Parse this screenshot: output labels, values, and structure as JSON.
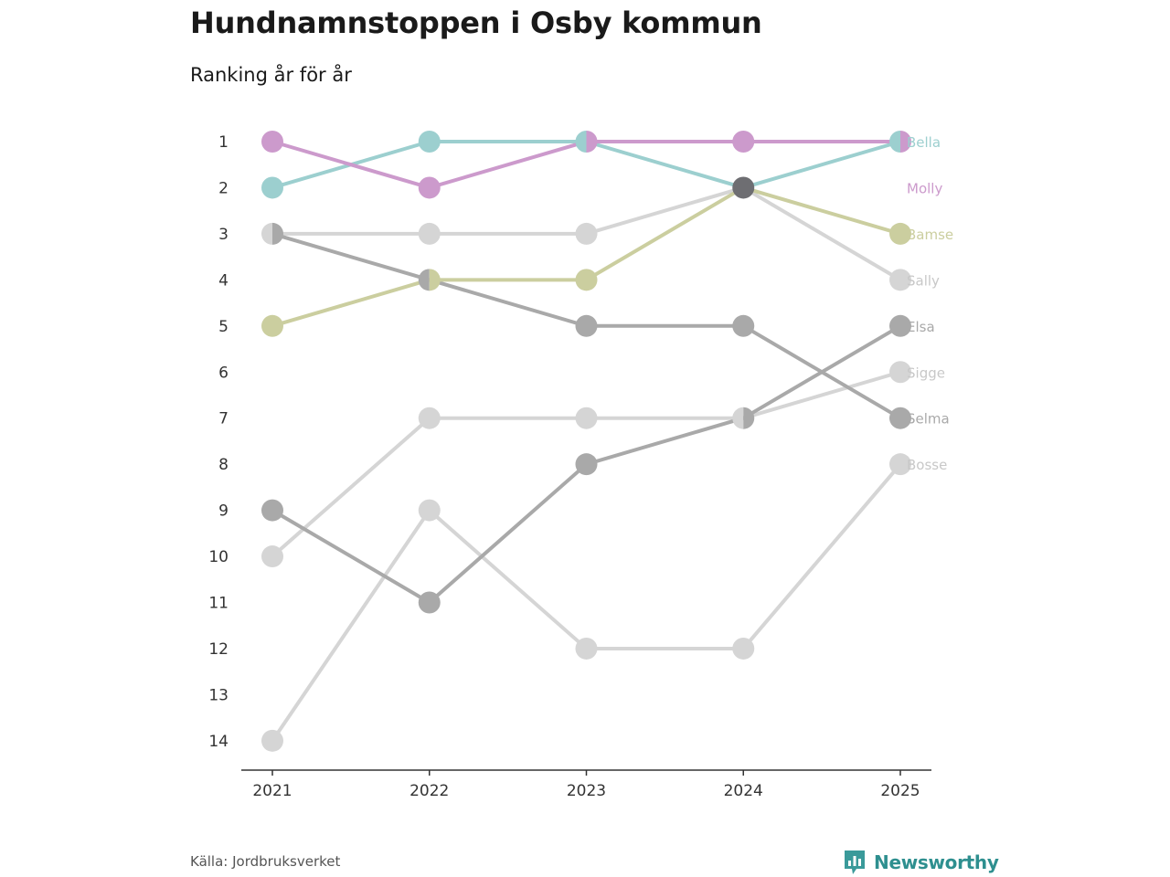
{
  "title": "Hundnamnstoppen i Osby kommun",
  "subtitle": "Ranking år för år",
  "source": "Källa: Jordbruksverket",
  "brand": {
    "name": "Newsworthy",
    "icon": "newsworthy-logo-icon",
    "color": "#3a9a9a"
  },
  "chart_data": {
    "type": "line",
    "title": "Hundnamnstoppen i Osby kommun",
    "subtitle": "Ranking år för år",
    "xlabel": "",
    "ylabel": "",
    "categories": [
      "2021",
      "2022",
      "2023",
      "2024",
      "2025"
    ],
    "ylim": [
      14,
      1
    ],
    "y_ticks": [
      "1",
      "2",
      "3",
      "4",
      "5",
      "6",
      "7",
      "8",
      "9",
      "10",
      "11",
      "12",
      "13",
      "14"
    ],
    "series": [
      {
        "name": "Bosse",
        "values": [
          14,
          9,
          12,
          12,
          8
        ],
        "color": "#d5d5d5"
      },
      {
        "name": "Sigge",
        "values": [
          10,
          7,
          7,
          7,
          6
        ],
        "color": "#d5d5d5"
      },
      {
        "name": "Sally",
        "values": [
          3,
          3,
          3,
          2,
          4
        ],
        "color": "#d5d5d5"
      },
      {
        "name": "Elsa",
        "values": [
          9,
          11,
          8,
          7,
          5
        ],
        "color": "#a9a9a9"
      },
      {
        "name": "Selma",
        "values": [
          3,
          4,
          5,
          5,
          7
        ],
        "color": "#a9a9a9"
      },
      {
        "name": "Bamse",
        "values": [
          5,
          4,
          4,
          2,
          3
        ],
        "color": "#cbce9f"
      },
      {
        "name": "Bella",
        "values": [
          2,
          1,
          1,
          2,
          1
        ],
        "color": "#9ccfcf"
      },
      {
        "name": "Molly",
        "values": [
          1,
          2,
          1,
          1,
          1
        ],
        "color": "#cc9acc"
      }
    ],
    "highlight_point": {
      "year": "2024",
      "rank": 2,
      "color": "#6e6e72"
    }
  }
}
